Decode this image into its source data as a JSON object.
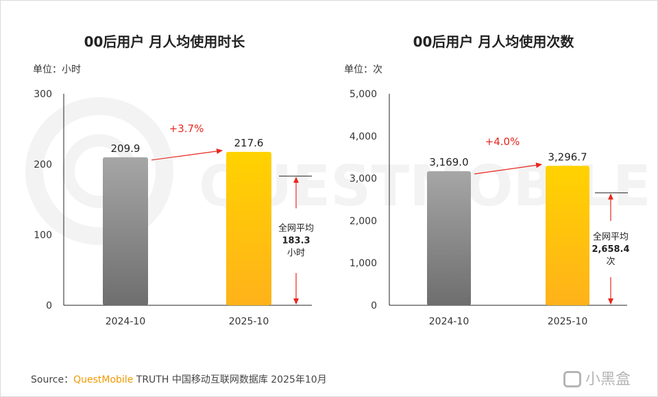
{
  "watermark": {
    "text": "QUESTMOBILE"
  },
  "source": {
    "prefix": "Source：",
    "brand": "QuestMobile",
    "suffix": " TRUTH 中国移动互联网数据库 2025年10月"
  },
  "corner_logo": {
    "text": "小黑盒",
    "icon": "xiaoheihe-logo-icon"
  },
  "colors": {
    "bar_2024_top": "#a6a6a6",
    "bar_2024_bottom": "#6e6e6e",
    "bar_2025_top": "#ffd200",
    "bar_2025_bottom": "#ffb21a",
    "growth": "#e8261e",
    "axis": "#222222"
  },
  "chart_data": [
    {
      "type": "bar",
      "title": "00后用户 月人均使用时长",
      "unit_label": "单位：小时",
      "categories": [
        "2024-10",
        "2025-10"
      ],
      "values": [
        209.9,
        217.6
      ],
      "value_labels": [
        "209.9",
        "217.6"
      ],
      "ylim": [
        0,
        300
      ],
      "yticks": [
        0,
        100,
        200,
        300
      ],
      "ytick_labels": [
        "0",
        "100",
        "200",
        "300"
      ],
      "growth_label": "+3.7%",
      "average": {
        "value": 183.3,
        "label_top": "全网平均",
        "label_value": "183.3",
        "label_unit": "小时"
      }
    },
    {
      "type": "bar",
      "title": "00后用户 月人均使用次数",
      "unit_label": "单位：次",
      "categories": [
        "2024-10",
        "2025-10"
      ],
      "values": [
        3169.0,
        3296.7
      ],
      "value_labels": [
        "3,169.0",
        "3,296.7"
      ],
      "ylim": [
        0,
        5000
      ],
      "yticks": [
        0,
        1000,
        2000,
        3000,
        4000,
        5000
      ],
      "ytick_labels": [
        "0",
        "1,000",
        "2,000",
        "3,000",
        "4,000",
        "5,000"
      ],
      "growth_label": "+4.0%",
      "average": {
        "value": 2658.4,
        "label_top": "全网平均",
        "label_value": "2,658.4",
        "label_unit": "次"
      }
    }
  ]
}
